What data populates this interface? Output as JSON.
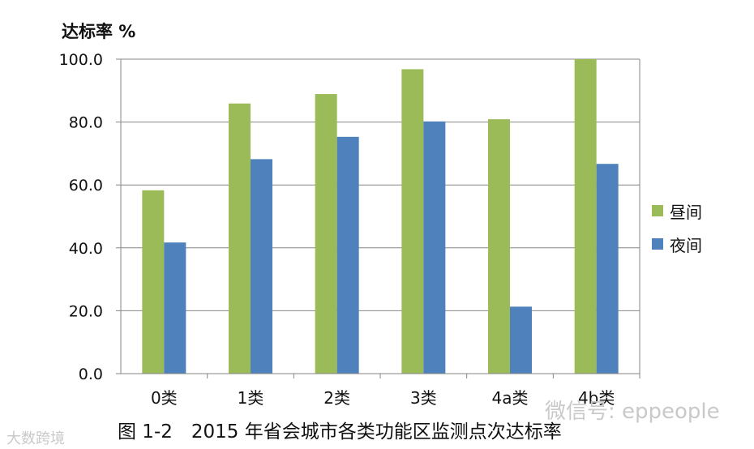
{
  "chart_data": {
    "type": "bar",
    "y_axis_title": "达标率 %",
    "categories": [
      "0类",
      "1类",
      "2类",
      "3类",
      "4a类",
      "4b类"
    ],
    "series": [
      {
        "name": "昼间",
        "color": "#9bbb59",
        "values": [
          58.3,
          85.9,
          88.9,
          96.8,
          80.9,
          100.0
        ]
      },
      {
        "name": "夜间",
        "color": "#4f81bd",
        "values": [
          41.7,
          68.2,
          75.3,
          80.2,
          21.3,
          66.7
        ]
      }
    ],
    "ylim": [
      0,
      100
    ],
    "y_ticks": [
      "0.0",
      "20.0",
      "40.0",
      "60.0",
      "80.0",
      "100.0"
    ],
    "grid": true,
    "legend_position": "right"
  },
  "caption": "图 1-2　2015 年省会城市各类功能区监测点次达标率",
  "watermark": "微信号: eppeople",
  "watermark2": "大数跨境"
}
